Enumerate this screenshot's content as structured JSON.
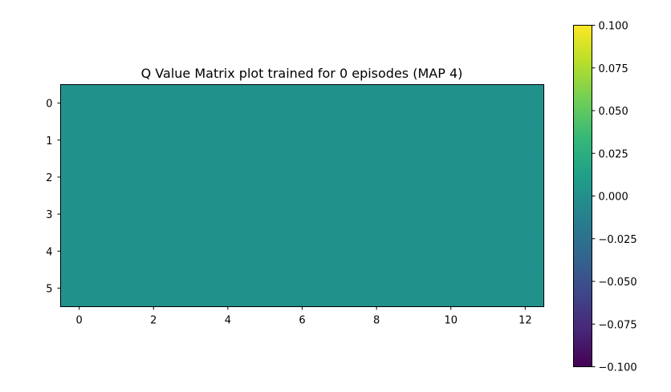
{
  "chart_data": {
    "type": "heatmap",
    "title": "Q Value Matrix plot trained for 0 episodes (MAP 4)",
    "xlabel": "",
    "ylabel": "",
    "rows": 6,
    "cols": 13,
    "x_ticks": [
      "0",
      "2",
      "4",
      "6",
      "8",
      "10",
      "12"
    ],
    "y_ticks": [
      "0",
      "1",
      "2",
      "3",
      "4",
      "5"
    ],
    "values": [
      [
        0,
        0,
        0,
        0,
        0,
        0,
        0,
        0,
        0,
        0,
        0,
        0,
        0
      ],
      [
        0,
        0,
        0,
        0,
        0,
        0,
        0,
        0,
        0,
        0,
        0,
        0,
        0
      ],
      [
        0,
        0,
        0,
        0,
        0,
        0,
        0,
        0,
        0,
        0,
        0,
        0,
        0
      ],
      [
        0,
        0,
        0,
        0,
        0,
        0,
        0,
        0,
        0,
        0,
        0,
        0,
        0
      ],
      [
        0,
        0,
        0,
        0,
        0,
        0,
        0,
        0,
        0,
        0,
        0,
        0,
        0
      ],
      [
        0,
        0,
        0,
        0,
        0,
        0,
        0,
        0,
        0,
        0,
        0,
        0,
        0
      ]
    ],
    "colorbar": {
      "colormap": "viridis",
      "vmin": -0.1,
      "vmax": 0.1,
      "ticks": [
        "0.100",
        "0.075",
        "0.050",
        "0.025",
        "0.000",
        "−0.025",
        "−0.050",
        "−0.075",
        "−0.100"
      ],
      "tick_values": [
        0.1,
        0.075,
        0.05,
        0.025,
        0.0,
        -0.025,
        -0.05,
        -0.075,
        -0.1
      ],
      "stops": [
        "#440154",
        "#482878",
        "#3e4989",
        "#31688e",
        "#26828e",
        "#1f9e89",
        "#35b779",
        "#6ece58",
        "#b5de2b",
        "#fde725"
      ],
      "cell_color": "#21918c"
    },
    "grid": false,
    "legend": "none"
  }
}
